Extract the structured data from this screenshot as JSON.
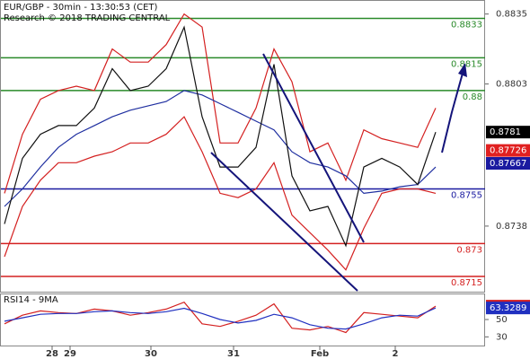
{
  "chart_data": [
    {
      "type": "line",
      "title": "EUR/GBP - 30min - 13:30:53 (CET)",
      "subtitle": "Research © 2018 TRADING CENTRAL",
      "x": [
        0,
        1,
        2,
        3,
        4,
        5,
        6,
        7,
        8,
        9,
        10,
        11,
        12,
        13,
        14,
        15,
        16,
        17,
        18,
        19,
        20,
        21,
        22,
        23,
        24
      ],
      "xlim": [
        -0.25,
        26.75
      ],
      "ylim": [
        0.8708,
        0.8841
      ],
      "yticks": [
        0.8738,
        0.8803,
        0.8835
      ],
      "series": [
        {
          "color": "#d42020",
          "values": [
            0.8753,
            0.878,
            0.8796,
            0.88,
            0.8802,
            0.88,
            0.8819,
            0.8813,
            0.8813,
            0.8821,
            0.8835,
            0.8829,
            0.8776,
            0.8776,
            0.8792,
            0.8819,
            0.8804,
            0.8772,
            0.8776,
            0.8759,
            0.8782,
            0.8778,
            0.8776,
            0.8774,
            0.8792
          ]
        },
        {
          "color": "#d42020",
          "values": [
            0.8724,
            0.8747,
            0.8759,
            0.8767,
            0.8767,
            0.877,
            0.8772,
            0.8776,
            0.8776,
            0.878,
            0.8788,
            0.8772,
            0.8753,
            0.8751,
            0.8755,
            0.8767,
            0.8743,
            0.8735,
            0.8727,
            0.8718,
            0.8737,
            0.8753,
            0.8755,
            0.8755,
            0.8753
          ]
        },
        {
          "color": "#1f2fa0",
          "values": [
            0.8747,
            0.8755,
            0.8765,
            0.8774,
            0.878,
            0.8784,
            0.8788,
            0.8791,
            0.8793,
            0.8795,
            0.88,
            0.8798,
            0.8794,
            0.879,
            0.8786,
            0.8782,
            0.8772,
            0.8767,
            0.8765,
            0.8761,
            0.8753,
            0.8754,
            0.8756,
            0.8757,
            0.8765
          ]
        },
        {
          "color": "#111111",
          "values": [
            0.8739,
            0.8769,
            0.878,
            0.8784,
            0.8784,
            0.8792,
            0.881,
            0.88,
            0.8802,
            0.881,
            0.8829,
            0.8788,
            0.8765,
            0.8765,
            0.8774,
            0.8812,
            0.8761,
            0.8745,
            0.8747,
            0.8729,
            0.8765,
            0.8769,
            0.8765,
            0.8757,
            0.8781
          ]
        }
      ],
      "levels": [
        {
          "value": 0.8833,
          "color": "#2a8a2a"
        },
        {
          "value": 0.8815,
          "color": "#2a8a2a"
        },
        {
          "value": 0.88,
          "color": "#2a8a2a"
        },
        {
          "value": 0.8755,
          "color": "#1a1aa0"
        },
        {
          "value": 0.873,
          "color": "#d42020"
        },
        {
          "value": 0.8715,
          "color": "#d42020"
        }
      ],
      "markers": [
        {
          "value": 0.8781,
          "color": "#000000"
        },
        {
          "value": 0.87726,
          "color": "#e02020"
        },
        {
          "value": 0.87667,
          "color": "#1a1aa0"
        }
      ]
    },
    {
      "type": "line",
      "title": "RSI14 - 9MA",
      "x": [
        0,
        1,
        2,
        3,
        4,
        5,
        6,
        7,
        8,
        9,
        10,
        11,
        12,
        13,
        14,
        15,
        16,
        17,
        18,
        19,
        20,
        21,
        22,
        23,
        24
      ],
      "xlim": [
        -0.25,
        26.75
      ],
      "ylim": [
        20,
        79
      ],
      "yticks": [
        30,
        50
      ],
      "xticks": [
        {
          "value": 2.65,
          "label": "28"
        },
        {
          "value": 3.65,
          "label": "29"
        },
        {
          "value": 8.15,
          "label": "30"
        },
        {
          "value": 12.75,
          "label": "31"
        },
        {
          "value": 17.55,
          "label": "Feb"
        },
        {
          "value": 21.75,
          "label": "2"
        }
      ],
      "series": [
        {
          "color": "#d42020",
          "values": [
            45,
            55,
            60,
            58,
            57,
            62,
            60,
            55,
            58,
            62,
            70,
            45,
            42,
            48,
            55,
            68,
            40,
            38,
            42,
            35,
            58,
            56,
            54,
            52,
            65.436
          ]
        },
        {
          "color": "#2030c0",
          "values": [
            48,
            52,
            56,
            57,
            57,
            59,
            60,
            58,
            57,
            59,
            63,
            57,
            50,
            46,
            49,
            56,
            52,
            44,
            40,
            39,
            45,
            52,
            55,
            54,
            63.3289
          ]
        }
      ]
    }
  ]
}
